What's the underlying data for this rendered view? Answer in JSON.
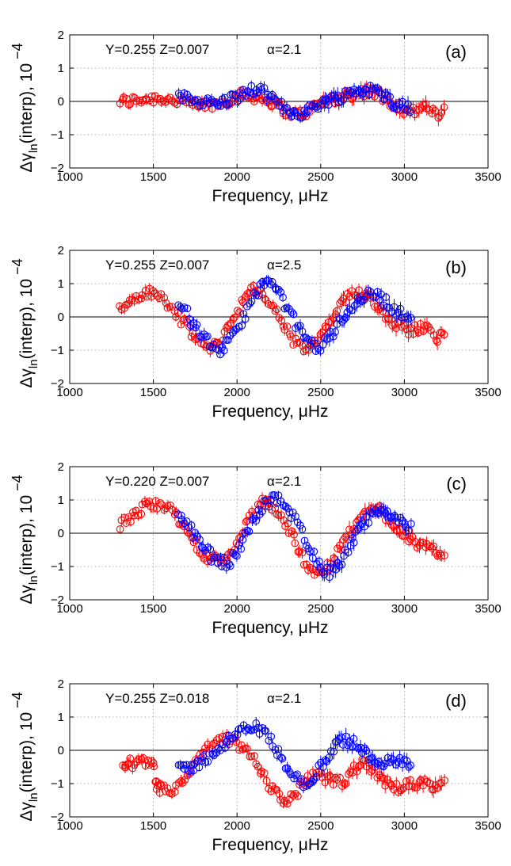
{
  "figure": {
    "xlabel": "Frequency,  μHz",
    "ylabel_main": "Δγ",
    "ylabel_sub": "ln",
    "ylabel_rest": "(interp), 10",
    "ylabel_exp": "−4"
  },
  "colors": {
    "red_series": "#ff0000",
    "blue_series": "#0000ff",
    "axis": "#000000",
    "grid": "#999999"
  },
  "chart_data": [
    {
      "type": "scatter",
      "panel_label": "(a)",
      "annotation": {
        "yz": "Y=0.255  Z=0.007",
        "alpha": "α=2.1"
      },
      "xlim": [
        1000,
        3500
      ],
      "ylim": [
        -2,
        2
      ],
      "xticks": [
        1000,
        1500,
        2000,
        2500,
        3000,
        3500
      ],
      "yticks": [
        -2,
        -1,
        0,
        1,
        2
      ],
      "grid": true,
      "series": [
        {
          "color": "red",
          "x": [
            1300,
            1350,
            1400,
            1450,
            1500,
            1550,
            1600,
            1650,
            1700,
            1750,
            1800,
            1850,
            1900,
            1950,
            2000,
            2050,
            2100,
            2150,
            2200,
            2250,
            2300,
            2350,
            2400,
            2450,
            2500,
            2550,
            2600,
            2650,
            2700,
            2750,
            2800,
            2850,
            2900,
            2950,
            3000,
            3050,
            3100,
            3150,
            3200,
            3250
          ],
          "y": [
            0.0,
            0.0,
            0.05,
            0.08,
            0.1,
            0.1,
            0.05,
            0.0,
            -0.05,
            -0.1,
            -0.12,
            -0.1,
            -0.05,
            0.05,
            0.15,
            0.2,
            0.15,
            0.1,
            0.0,
            -0.15,
            -0.3,
            -0.4,
            -0.35,
            -0.2,
            -0.05,
            0.05,
            0.1,
            0.15,
            0.25,
            0.3,
            0.3,
            0.2,
            0.05,
            -0.1,
            -0.25,
            -0.3,
            -0.2,
            -0.25,
            -0.4,
            -0.2
          ]
        },
        {
          "color": "blue",
          "x": [
            1650,
            1700,
            1750,
            1800,
            1850,
            1900,
            1950,
            2000,
            2050,
            2100,
            2150,
            2200,
            2250,
            2300,
            2350,
            2400,
            2450,
            2500,
            2550,
            2600,
            2650,
            2700,
            2750,
            2800,
            2850,
            2900,
            2950,
            3000,
            3050
          ],
          "y": [
            0.1,
            0.1,
            0.05,
            0.0,
            -0.05,
            -0.05,
            0.05,
            0.15,
            0.25,
            0.35,
            0.3,
            0.1,
            -0.1,
            -0.25,
            -0.35,
            -0.35,
            -0.2,
            -0.05,
            0.05,
            0.1,
            0.2,
            0.3,
            0.35,
            0.35,
            0.25,
            0.1,
            -0.05,
            -0.15,
            -0.2
          ]
        }
      ]
    },
    {
      "type": "scatter",
      "panel_label": "(b)",
      "annotation": {
        "yz": "Y=0.255  Z=0.007",
        "alpha": "α=2.5"
      },
      "xlim": [
        1000,
        3500
      ],
      "ylim": [
        -2,
        2
      ],
      "xticks": [
        1000,
        1500,
        2000,
        2500,
        3000,
        3500
      ],
      "yticks": [
        -2,
        -1,
        0,
        1,
        2
      ],
      "grid": true,
      "series": [
        {
          "color": "red",
          "x": [
            1300,
            1350,
            1400,
            1450,
            1500,
            1550,
            1600,
            1650,
            1700,
            1750,
            1800,
            1850,
            1900,
            1950,
            2000,
            2050,
            2100,
            2150,
            2200,
            2250,
            2300,
            2350,
            2400,
            2450,
            2500,
            2550,
            2600,
            2650,
            2700,
            2750,
            2800,
            2850,
            2900,
            2950,
            3000,
            3050,
            3100,
            3150,
            3200,
            3250
          ],
          "y": [
            0.2,
            0.4,
            0.6,
            0.7,
            0.7,
            0.6,
            0.3,
            0.0,
            -0.3,
            -0.6,
            -0.85,
            -0.95,
            -0.7,
            -0.3,
            0.2,
            0.6,
            0.8,
            0.7,
            0.4,
            0.0,
            -0.4,
            -0.8,
            -0.95,
            -0.9,
            -0.6,
            -0.2,
            0.2,
            0.5,
            0.7,
            0.75,
            0.6,
            0.3,
            0.0,
            -0.2,
            -0.35,
            -0.4,
            -0.3,
            -0.4,
            -0.6,
            -0.3
          ]
        },
        {
          "color": "blue",
          "x": [
            1650,
            1700,
            1750,
            1800,
            1850,
            1900,
            1950,
            2000,
            2050,
            2100,
            2150,
            2200,
            2250,
            2300,
            2350,
            2400,
            2450,
            2500,
            2550,
            2600,
            2650,
            2700,
            2750,
            2800,
            2850,
            2900,
            2950,
            3000,
            3050
          ],
          "y": [
            0.4,
            0.1,
            -0.3,
            -0.6,
            -0.85,
            -1.0,
            -0.8,
            -0.4,
            0.1,
            0.6,
            1.0,
            1.0,
            0.7,
            0.3,
            -0.2,
            -0.6,
            -0.85,
            -0.9,
            -0.6,
            -0.3,
            0.1,
            0.4,
            0.6,
            0.7,
            0.6,
            0.4,
            0.2,
            0.0,
            -0.1
          ]
        }
      ]
    },
    {
      "type": "scatter",
      "panel_label": "(c)",
      "annotation": {
        "yz": "Y=0.220  Z=0.007",
        "alpha": "α=2.1"
      },
      "xlim": [
        1000,
        3500
      ],
      "ylim": [
        -2,
        2
      ],
      "xticks": [
        1000,
        1500,
        2000,
        2500,
        3000,
        3500
      ],
      "yticks": [
        -2,
        -1,
        0,
        1,
        2
      ],
      "grid": true,
      "series": [
        {
          "color": "red",
          "x": [
            1300,
            1350,
            1400,
            1450,
            1500,
            1550,
            1600,
            1650,
            1700,
            1750,
            1800,
            1850,
            1900,
            1950,
            2000,
            2050,
            2100,
            2150,
            2200,
            2250,
            2300,
            2350,
            2400,
            2450,
            2500,
            2550,
            2600,
            2650,
            2700,
            2750,
            2800,
            2850,
            2900,
            2950,
            3000,
            3050,
            3100,
            3150,
            3200,
            3250
          ],
          "y": [
            0.25,
            0.4,
            0.6,
            0.8,
            0.9,
            0.9,
            0.7,
            0.4,
            0.0,
            -0.3,
            -0.6,
            -0.8,
            -0.85,
            -0.7,
            -0.3,
            0.2,
            0.6,
            0.9,
            0.9,
            0.6,
            0.2,
            -0.3,
            -0.8,
            -1.1,
            -1.2,
            -1.0,
            -0.6,
            -0.2,
            0.2,
            0.5,
            0.7,
            0.7,
            0.5,
            0.2,
            0.0,
            -0.2,
            -0.4,
            -0.5,
            -0.6,
            -0.5
          ]
        },
        {
          "color": "blue",
          "x": [
            1650,
            1700,
            1750,
            1800,
            1850,
            1900,
            1950,
            2000,
            2050,
            2100,
            2150,
            2200,
            2250,
            2300,
            2350,
            2400,
            2450,
            2500,
            2550,
            2600,
            2650,
            2700,
            2750,
            2800,
            2850,
            2900,
            2950,
            3000,
            3050
          ],
          "y": [
            0.6,
            0.3,
            -0.1,
            -0.45,
            -0.7,
            -0.85,
            -0.9,
            -0.6,
            -0.1,
            0.4,
            0.8,
            1.0,
            1.0,
            0.8,
            0.4,
            -0.1,
            -0.6,
            -1.0,
            -1.2,
            -1.0,
            -0.6,
            -0.2,
            0.2,
            0.5,
            0.6,
            0.6,
            0.5,
            0.3,
            0.1
          ]
        }
      ]
    },
    {
      "type": "scatter",
      "panel_label": "(d)",
      "annotation": {
        "yz": "Y=0.255  Z=0.018",
        "alpha": "α=2.1"
      },
      "xlim": [
        1000,
        3500
      ],
      "ylim": [
        -2,
        2
      ],
      "xticks": [
        1000,
        1500,
        2000,
        2500,
        3000,
        3500
      ],
      "yticks": [
        -2,
        -1,
        0,
        1,
        2
      ],
      "grid": true,
      "series": [
        {
          "color": "red",
          "x": [
            1320,
            1350,
            1400,
            1450,
            1500,
            1520,
            1550,
            1600,
            1650,
            1700,
            1750,
            1800,
            1850,
            1900,
            1950,
            2000,
            2050,
            2100,
            2150,
            2200,
            2250,
            2300,
            2350,
            2400,
            2450,
            2500,
            2550,
            2600,
            2650,
            2700,
            2750,
            2800,
            2850,
            2900,
            2950,
            3000,
            3050,
            3100,
            3150,
            3200,
            3250
          ],
          "y": [
            -0.45,
            -0.4,
            -0.35,
            -0.4,
            -0.45,
            -1.2,
            -1.15,
            -1.2,
            -1.1,
            -0.8,
            -0.4,
            -0.1,
            0.15,
            0.3,
            0.3,
            0.2,
            0.0,
            -0.3,
            -0.7,
            -1.1,
            -1.4,
            -1.5,
            -1.3,
            -1.0,
            -0.8,
            -0.8,
            -0.9,
            -1.0,
            -0.9,
            -0.6,
            -0.4,
            -0.5,
            -0.8,
            -1.0,
            -1.1,
            -1.1,
            -1.0,
            -0.9,
            -1.0,
            -1.1,
            -0.9
          ]
        },
        {
          "color": "blue",
          "x": [
            1650,
            1700,
            1750,
            1800,
            1850,
            1900,
            1950,
            2000,
            2050,
            2100,
            2150,
            2200,
            2250,
            2300,
            2350,
            2400,
            2450,
            2500,
            2550,
            2600,
            2650,
            2700,
            2750,
            2800,
            2850,
            2900,
            2950,
            3000,
            3050
          ],
          "y": [
            -0.6,
            -0.55,
            -0.45,
            -0.3,
            -0.1,
            0.1,
            0.3,
            0.5,
            0.65,
            0.7,
            0.6,
            0.3,
            -0.1,
            -0.5,
            -0.8,
            -1.0,
            -0.9,
            -0.5,
            -0.1,
            0.2,
            0.3,
            0.2,
            0.0,
            -0.2,
            -0.3,
            -0.35,
            -0.35,
            -0.4,
            -0.45
          ]
        }
      ]
    }
  ]
}
